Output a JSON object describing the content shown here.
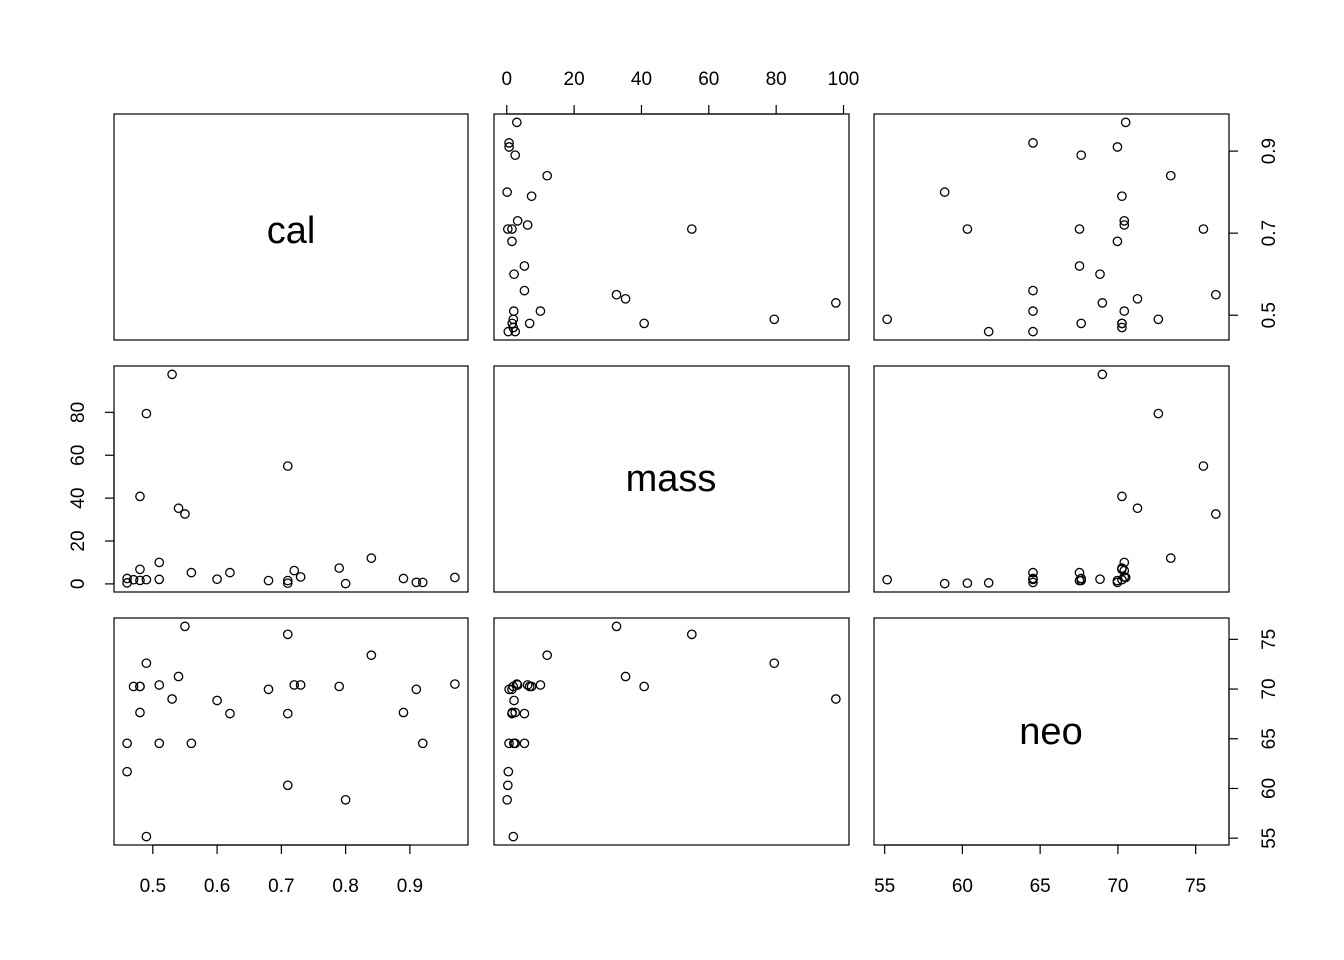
{
  "chart_data": {
    "type": "scatter",
    "variables": [
      {
        "name": "cal",
        "range": [
          0.46,
          0.97
        ]
      },
      {
        "name": "mass",
        "range": [
          0.12,
          97.72
        ]
      },
      {
        "name": "neo",
        "range": [
          55.16,
          76.3
        ]
      }
    ],
    "ticks": {
      "cal": [
        0.5,
        0.6,
        0.7,
        0.8,
        0.9
      ],
      "cal_labels": [
        "0.5",
        "0.6",
        "0.7",
        "0.8",
        "0.9"
      ],
      "mass": [
        0,
        20,
        40,
        60,
        80,
        100
      ],
      "mass_labels": [
        "0",
        "20",
        "40",
        "60",
        "80",
        "100"
      ],
      "mass_left": [
        0,
        20,
        40,
        60,
        80
      ],
      "mass_left_labels": [
        "0",
        "20",
        "40",
        "60",
        "80"
      ],
      "neo": [
        55,
        60,
        65,
        70,
        75
      ],
      "neo_labels": [
        "55",
        "60",
        "65",
        "70",
        "75"
      ],
      "cal_right": [
        0.5,
        0.7,
        0.9
      ],
      "cal_right_labels": [
        "0.5",
        "0.7",
        "0.9"
      ]
    },
    "observations": [
      {
        "cal": 0.49,
        "mass": 1.95,
        "neo": 55.16
      },
      {
        "cal": 0.51,
        "mass": 2.09,
        "neo": 64.54
      },
      {
        "cal": 0.46,
        "mass": 2.51,
        "neo": 64.54
      },
      {
        "cal": 0.48,
        "mass": 1.62,
        "neo": 67.64
      },
      {
        "cal": 0.6,
        "mass": 2.17,
        "neo": 68.85
      },
      {
        "cal": 0.47,
        "mass": 1.93,
        "neo": 70.26
      },
      {
        "cal": 0.56,
        "mass": 5.25,
        "neo": 64.54
      },
      {
        "cal": 0.89,
        "mass": 2.51,
        "neo": 67.64
      },
      {
        "cal": 0.91,
        "mass": 0.71,
        "neo": 69.97
      },
      {
        "cal": 0.92,
        "mass": 0.68,
        "neo": 64.54
      },
      {
        "cal": 0.8,
        "mass": 0.12,
        "neo": 58.86
      },
      {
        "cal": 0.46,
        "mass": 0.47,
        "neo": 61.69
      },
      {
        "cal": 0.71,
        "mass": 0.32,
        "neo": 60.32
      },
      {
        "cal": 0.71,
        "mass": 1.55,
        "neo": 67.53
      },
      {
        "cal": 0.73,
        "mass": 3.24,
        "neo": 70.41
      },
      {
        "cal": 0.68,
        "mass": 1.55,
        "neo": 69.97
      },
      {
        "cal": 0.62,
        "mass": 5.25,
        "neo": 67.53
      },
      {
        "cal": 0.48,
        "mass": 6.8,
        "neo": 70.26
      },
      {
        "cal": 0.79,
        "mass": 7.38,
        "neo": 70.26
      },
      {
        "cal": 0.72,
        "mass": 6.2,
        "neo": 70.41
      },
      {
        "cal": 0.84,
        "mass": 12.0,
        "neo": 73.4
      },
      {
        "cal": 0.51,
        "mass": 10.0,
        "neo": 70.41
      },
      {
        "cal": 0.54,
        "mass": 35.28,
        "neo": 71.26
      },
      {
        "cal": 0.55,
        "mass": 32.6,
        "neo": 76.3
      },
      {
        "cal": 0.48,
        "mass": 40.8,
        "neo": 70.26
      },
      {
        "cal": 0.71,
        "mass": 54.95,
        "neo": 75.5
      },
      {
        "cal": 0.49,
        "mass": 79.43,
        "neo": 72.6
      },
      {
        "cal": 0.53,
        "mass": 97.72,
        "neo": 69.0
      },
      {
        "cal": 0.97,
        "mass": 3.0,
        "neo": 70.5
      }
    ]
  }
}
